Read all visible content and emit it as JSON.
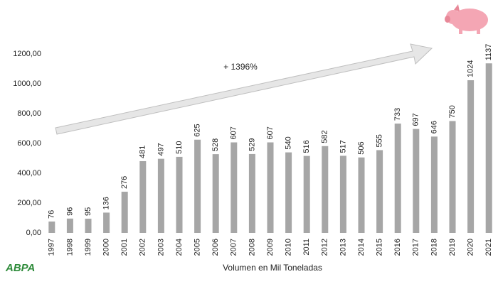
{
  "chart_data": {
    "type": "bar",
    "annotation": "+ 1396%",
    "x_label": "Volumen en Mil Toneladas",
    "logo": "ABPA",
    "categories": [
      "1997",
      "1998",
      "1999",
      "2000",
      "2001",
      "2002",
      "2003",
      "2004",
      "2005",
      "2006",
      "2007",
      "2008",
      "2009",
      "2010",
      "2011",
      "2012",
      "2013",
      "2014",
      "2015",
      "2016",
      "2017",
      "2018",
      "2019",
      "2020",
      "2021"
    ],
    "values": [
      76,
      96,
      95,
      136,
      276,
      481,
      497,
      510,
      625,
      528,
      607,
      529,
      607,
      540,
      516,
      582,
      517,
      506,
      555,
      733,
      697,
      646,
      750,
      1024,
      1137
    ],
    "color": "#a6a6a6",
    "ylim": [
      0,
      1200
    ],
    "yticks": [
      {
        "value": 0,
        "label": "0,00"
      },
      {
        "value": 200,
        "label": "200,00"
      },
      {
        "value": 400,
        "label": "400,00"
      },
      {
        "value": 600,
        "label": "600,00"
      },
      {
        "value": 800,
        "label": "800,00"
      },
      {
        "value": 1000,
        "label": "1000,00"
      },
      {
        "value": 1200,
        "label": "1200,00"
      }
    ],
    "grid": false
  }
}
